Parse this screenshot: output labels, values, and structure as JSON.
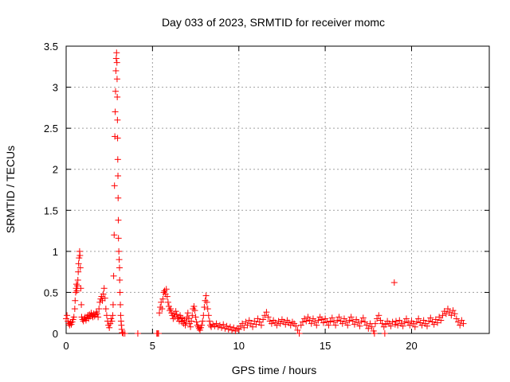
{
  "chart_data": {
    "type": "scatter",
    "title": "Day 033 of 2023, SRMTID for receiver momc",
    "xlabel": "GPS time / hours",
    "ylabel": "SRMTID / TECUs",
    "xlim": [
      0,
      24.5
    ],
    "ylim": [
      0,
      3.5
    ],
    "xticks": [
      0,
      5,
      10,
      15,
      20
    ],
    "yticks": [
      0,
      0.5,
      1,
      1.5,
      2,
      2.5,
      3,
      3.5
    ],
    "xtick_labels": [
      "0",
      "5",
      "10",
      "15",
      "20"
    ],
    "ytick_labels": [
      "0",
      "0.5",
      "1",
      "1.5",
      "2",
      "2.5",
      "3",
      "3.5"
    ],
    "grid": true,
    "marker": "+",
    "color": "#ff0000",
    "series": [
      {
        "points": [
          [
            0.0,
            0.18
          ],
          [
            0.05,
            0.22
          ],
          [
            0.1,
            0.15
          ],
          [
            0.15,
            0.12
          ],
          [
            0.2,
            0.1
          ],
          [
            0.25,
            0.13
          ],
          [
            0.3,
            0.11
          ],
          [
            0.35,
            0.14
          ],
          [
            0.4,
            0.17
          ],
          [
            0.45,
            0.2
          ],
          [
            0.5,
            0.3
          ],
          [
            0.52,
            0.4
          ],
          [
            0.55,
            0.5
          ],
          [
            0.58,
            0.55
          ],
          [
            0.6,
            0.6
          ],
          [
            0.62,
            0.52
          ],
          [
            0.65,
            0.58
          ],
          [
            0.68,
            0.65
          ],
          [
            0.7,
            0.75
          ],
          [
            0.72,
            0.85
          ],
          [
            0.75,
            0.92
          ],
          [
            0.78,
            1.0
          ],
          [
            0.8,
            0.95
          ],
          [
            0.82,
            0.8
          ],
          [
            0.85,
            0.55
          ],
          [
            0.88,
            0.35
          ],
          [
            0.9,
            0.2
          ],
          [
            0.95,
            0.17
          ],
          [
            1.0,
            0.15
          ],
          [
            1.05,
            0.18
          ],
          [
            1.1,
            0.2
          ],
          [
            1.15,
            0.16
          ],
          [
            1.2,
            0.19
          ],
          [
            1.25,
            0.22
          ],
          [
            1.3,
            0.18
          ],
          [
            1.35,
            0.23
          ],
          [
            1.4,
            0.21
          ],
          [
            1.45,
            0.25
          ],
          [
            1.5,
            0.22
          ],
          [
            1.55,
            0.2
          ],
          [
            1.6,
            0.24
          ],
          [
            1.65,
            0.21
          ],
          [
            1.7,
            0.23
          ],
          [
            1.75,
            0.26
          ],
          [
            1.8,
            0.24
          ],
          [
            1.85,
            0.2
          ],
          [
            1.9,
            0.3
          ],
          [
            1.95,
            0.38
          ],
          [
            2.0,
            0.42
          ],
          [
            2.05,
            0.45
          ],
          [
            2.1,
            0.4
          ],
          [
            2.15,
            0.48
          ],
          [
            2.2,
            0.55
          ],
          [
            2.25,
            0.43
          ],
          [
            2.3,
            0.3
          ],
          [
            2.35,
            0.22
          ],
          [
            2.4,
            0.15
          ],
          [
            2.45,
            0.1
          ],
          [
            2.5,
            0.07
          ],
          [
            2.55,
            0.12
          ],
          [
            2.6,
            0.18
          ],
          [
            2.65,
            0.15
          ],
          [
            2.7,
            0.22
          ],
          [
            2.72,
            0.35
          ],
          [
            2.75,
            0.7
          ],
          [
            2.78,
            1.2
          ],
          [
            2.8,
            1.8
          ],
          [
            2.82,
            2.4
          ],
          [
            2.84,
            2.7
          ],
          [
            2.86,
            2.95
          ],
          [
            2.88,
            3.2
          ],
          [
            2.9,
            3.35
          ],
          [
            2.92,
            3.42
          ],
          [
            2.94,
            3.3
          ],
          [
            2.95,
            3.1
          ],
          [
            2.96,
            2.88
          ],
          [
            2.97,
            2.6
          ],
          [
            2.98,
            2.38
          ],
          [
            2.99,
            2.12
          ],
          [
            3.0,
            1.92
          ],
          [
            3.01,
            1.65
          ],
          [
            3.02,
            1.38
          ],
          [
            3.03,
            1.16
          ],
          [
            3.05,
            1.0
          ],
          [
            3.07,
            0.9
          ],
          [
            3.09,
            0.8
          ],
          [
            3.1,
            0.65
          ],
          [
            3.12,
            0.5
          ],
          [
            3.14,
            0.35
          ],
          [
            3.16,
            0.22
          ],
          [
            3.18,
            0.15
          ],
          [
            3.2,
            0.1
          ],
          [
            3.22,
            0.05
          ],
          [
            3.25,
            0.01
          ],
          [
            3.3,
            0.0
          ],
          [
            3.4,
            0.0
          ],
          [
            4.15,
            0.0
          ],
          [
            5.25,
            0.0
          ],
          [
            5.3,
            0.0
          ],
          [
            5.35,
            0.0
          ],
          [
            5.4,
            0.25
          ],
          [
            5.45,
            0.32
          ],
          [
            5.5,
            0.38
          ],
          [
            5.55,
            0.3
          ],
          [
            5.6,
            0.42
          ],
          [
            5.65,
            0.5
          ],
          [
            5.7,
            0.52
          ],
          [
            5.75,
            0.48
          ],
          [
            5.8,
            0.54
          ],
          [
            5.85,
            0.45
          ],
          [
            5.9,
            0.38
          ],
          [
            5.95,
            0.33
          ],
          [
            6.0,
            0.28
          ],
          [
            6.05,
            0.3
          ],
          [
            6.1,
            0.25
          ],
          [
            6.15,
            0.22
          ],
          [
            6.2,
            0.18
          ],
          [
            6.25,
            0.24
          ],
          [
            6.3,
            0.2
          ],
          [
            6.35,
            0.27
          ],
          [
            6.4,
            0.23
          ],
          [
            6.45,
            0.18
          ],
          [
            6.5,
            0.2
          ],
          [
            6.55,
            0.15
          ],
          [
            6.6,
            0.22
          ],
          [
            6.65,
            0.19
          ],
          [
            6.7,
            0.14
          ],
          [
            6.75,
            0.18
          ],
          [
            6.8,
            0.12
          ],
          [
            6.85,
            0.16
          ],
          [
            6.9,
            0.1
          ],
          [
            6.95,
            0.14
          ],
          [
            7.0,
            0.2
          ],
          [
            7.05,
            0.25
          ],
          [
            7.1,
            0.18
          ],
          [
            7.15,
            0.12
          ],
          [
            7.2,
            0.08
          ],
          [
            7.25,
            0.15
          ],
          [
            7.3,
            0.22
          ],
          [
            7.35,
            0.3
          ],
          [
            7.4,
            0.33
          ],
          [
            7.45,
            0.28
          ],
          [
            7.5,
            0.2
          ],
          [
            7.55,
            0.14
          ],
          [
            7.6,
            0.1
          ],
          [
            7.65,
            0.08
          ],
          [
            7.7,
            0.06
          ],
          [
            7.75,
            0.04
          ],
          [
            7.8,
            0.07
          ],
          [
            7.85,
            0.1
          ],
          [
            7.9,
            0.15
          ],
          [
            7.95,
            0.22
          ],
          [
            8.0,
            0.32
          ],
          [
            8.05,
            0.4
          ],
          [
            8.1,
            0.46
          ],
          [
            8.15,
            0.38
          ],
          [
            8.2,
            0.3
          ],
          [
            8.25,
            0.22
          ],
          [
            8.3,
            0.15
          ],
          [
            8.35,
            0.1
          ],
          [
            8.4,
            0.08
          ],
          [
            8.5,
            0.11
          ],
          [
            8.6,
            0.09
          ],
          [
            8.7,
            0.12
          ],
          [
            8.8,
            0.08
          ],
          [
            8.9,
            0.1
          ],
          [
            9.0,
            0.07
          ],
          [
            9.1,
            0.11
          ],
          [
            9.2,
            0.06
          ],
          [
            9.3,
            0.09
          ],
          [
            9.4,
            0.05
          ],
          [
            9.5,
            0.08
          ],
          [
            9.6,
            0.04
          ],
          [
            9.7,
            0.07
          ],
          [
            9.8,
            0.03
          ],
          [
            9.9,
            0.06
          ],
          [
            10.0,
            0.05
          ],
          [
            10.1,
            0.09
          ],
          [
            10.2,
            0.12
          ],
          [
            10.3,
            0.07
          ],
          [
            10.4,
            0.14
          ],
          [
            10.5,
            0.1
          ],
          [
            10.6,
            0.16
          ],
          [
            10.7,
            0.12
          ],
          [
            10.8,
            0.08
          ],
          [
            10.9,
            0.15
          ],
          [
            11.0,
            0.11
          ],
          [
            11.1,
            0.18
          ],
          [
            11.2,
            0.14
          ],
          [
            11.3,
            0.1
          ],
          [
            11.4,
            0.17
          ],
          [
            11.5,
            0.22
          ],
          [
            11.6,
            0.26
          ],
          [
            11.7,
            0.2
          ],
          [
            11.8,
            0.15
          ],
          [
            11.9,
            0.12
          ],
          [
            12.0,
            0.16
          ],
          [
            12.1,
            0.13
          ],
          [
            12.2,
            0.1
          ],
          [
            12.3,
            0.15
          ],
          [
            12.4,
            0.12
          ],
          [
            12.5,
            0.17
          ],
          [
            12.6,
            0.14
          ],
          [
            12.7,
            0.11
          ],
          [
            12.8,
            0.16
          ],
          [
            12.9,
            0.13
          ],
          [
            13.0,
            0.1
          ],
          [
            13.1,
            0.14
          ],
          [
            13.2,
            0.12
          ],
          [
            13.3,
            0.09
          ],
          [
            13.4,
            0.04
          ],
          [
            13.5,
            0.0
          ],
          [
            13.6,
            0.1
          ],
          [
            13.7,
            0.14
          ],
          [
            13.8,
            0.18
          ],
          [
            13.9,
            0.15
          ],
          [
            14.0,
            0.2
          ],
          [
            14.1,
            0.16
          ],
          [
            14.2,
            0.12
          ],
          [
            14.3,
            0.18
          ],
          [
            14.4,
            0.14
          ],
          [
            14.5,
            0.1
          ],
          [
            14.6,
            0.16
          ],
          [
            14.7,
            0.2
          ],
          [
            14.8,
            0.17
          ],
          [
            14.9,
            0.13
          ],
          [
            15.0,
            0.18
          ],
          [
            15.1,
            0.14
          ],
          [
            15.2,
            0.1
          ],
          [
            15.3,
            0.15
          ],
          [
            15.4,
            0.19
          ],
          [
            15.5,
            0.14
          ],
          [
            15.6,
            0.1
          ],
          [
            15.7,
            0.16
          ],
          [
            15.8,
            0.2
          ],
          [
            15.9,
            0.15
          ],
          [
            16.0,
            0.12
          ],
          [
            16.1,
            0.18
          ],
          [
            16.2,
            0.14
          ],
          [
            16.3,
            0.1
          ],
          [
            16.4,
            0.16
          ],
          [
            16.5,
            0.2
          ],
          [
            16.6,
            0.15
          ],
          [
            16.7,
            0.11
          ],
          [
            16.8,
            0.17
          ],
          [
            16.9,
            0.13
          ],
          [
            17.0,
            0.09
          ],
          [
            17.1,
            0.15
          ],
          [
            17.2,
            0.19
          ],
          [
            17.3,
            0.14
          ],
          [
            17.4,
            0.1
          ],
          [
            17.5,
            0.06
          ],
          [
            17.6,
            0.12
          ],
          [
            17.7,
            0.08
          ],
          [
            17.8,
            0.03
          ],
          [
            17.85,
            0.0
          ],
          [
            17.9,
            0.12
          ],
          [
            18.0,
            0.18
          ],
          [
            18.1,
            0.22
          ],
          [
            18.2,
            0.16
          ],
          [
            18.3,
            0.12
          ],
          [
            18.4,
            0.08
          ],
          [
            18.45,
            0.0
          ],
          [
            18.5,
            0.11
          ],
          [
            18.6,
            0.15
          ],
          [
            18.7,
            0.12
          ],
          [
            18.8,
            0.09
          ],
          [
            18.9,
            0.14
          ],
          [
            19.0,
            0.62
          ],
          [
            19.05,
            0.11
          ],
          [
            19.1,
            0.15
          ],
          [
            19.2,
            0.1
          ],
          [
            19.3,
            0.16
          ],
          [
            19.4,
            0.12
          ],
          [
            19.5,
            0.09
          ],
          [
            19.6,
            0.14
          ],
          [
            19.7,
            0.18
          ],
          [
            19.8,
            0.13
          ],
          [
            19.9,
            0.1
          ],
          [
            20.0,
            0.15
          ],
          [
            20.1,
            0.12
          ],
          [
            20.2,
            0.08
          ],
          [
            20.3,
            0.14
          ],
          [
            20.4,
            0.18
          ],
          [
            20.5,
            0.13
          ],
          [
            20.6,
            0.1
          ],
          [
            20.7,
            0.16
          ],
          [
            20.8,
            0.12
          ],
          [
            20.9,
            0.09
          ],
          [
            21.0,
            0.15
          ],
          [
            21.1,
            0.19
          ],
          [
            21.2,
            0.14
          ],
          [
            21.3,
            0.11
          ],
          [
            21.4,
            0.17
          ],
          [
            21.5,
            0.13
          ],
          [
            21.6,
            0.2
          ],
          [
            21.7,
            0.16
          ],
          [
            21.8,
            0.22
          ],
          [
            21.9,
            0.27
          ],
          [
            22.0,
            0.24
          ],
          [
            22.1,
            0.3
          ],
          [
            22.2,
            0.26
          ],
          [
            22.3,
            0.22
          ],
          [
            22.4,
            0.28
          ],
          [
            22.5,
            0.24
          ],
          [
            22.6,
            0.18
          ],
          [
            22.7,
            0.14
          ],
          [
            22.8,
            0.1
          ],
          [
            22.9,
            0.16
          ],
          [
            23.0,
            0.12
          ]
        ]
      }
    ]
  }
}
